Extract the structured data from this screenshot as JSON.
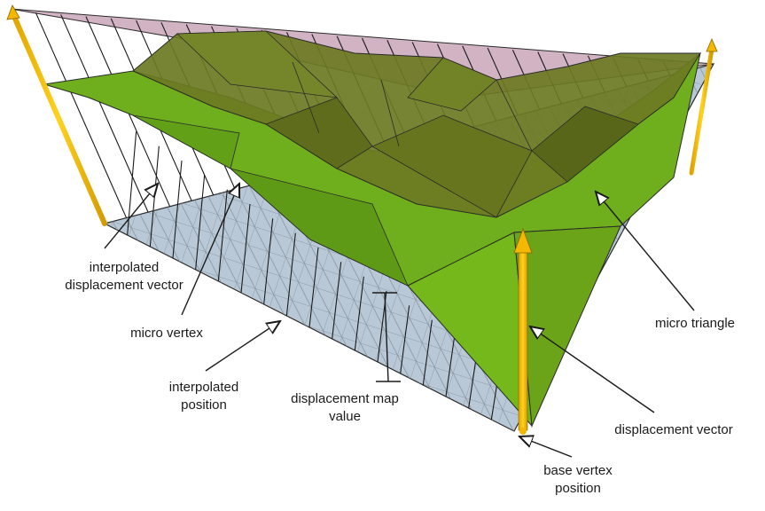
{
  "labels": {
    "interpolated_displacement_vector_l1": "interpolated",
    "interpolated_displacement_vector_l2": "displacement vector",
    "micro_vertex": "micro vertex",
    "interpolated_position_l1": "interpolated",
    "interpolated_position_l2": "position",
    "displacement_map_value_l1": "displacement map",
    "displacement_map_value_l2": "value",
    "micro_triangle": "micro triangle",
    "displacement_vector": "displacement vector",
    "base_vertex_position_l1": "base vertex",
    "base_vertex_position_l2": "position"
  },
  "colors": {
    "base_plane": "#b9c8d6",
    "top_plane": "#c9a6b8",
    "surface_green": "#6fae1c",
    "surface_olive": "#6b7a22",
    "arrow_yellow": "#f5b800",
    "line": "#1a1a1a"
  }
}
